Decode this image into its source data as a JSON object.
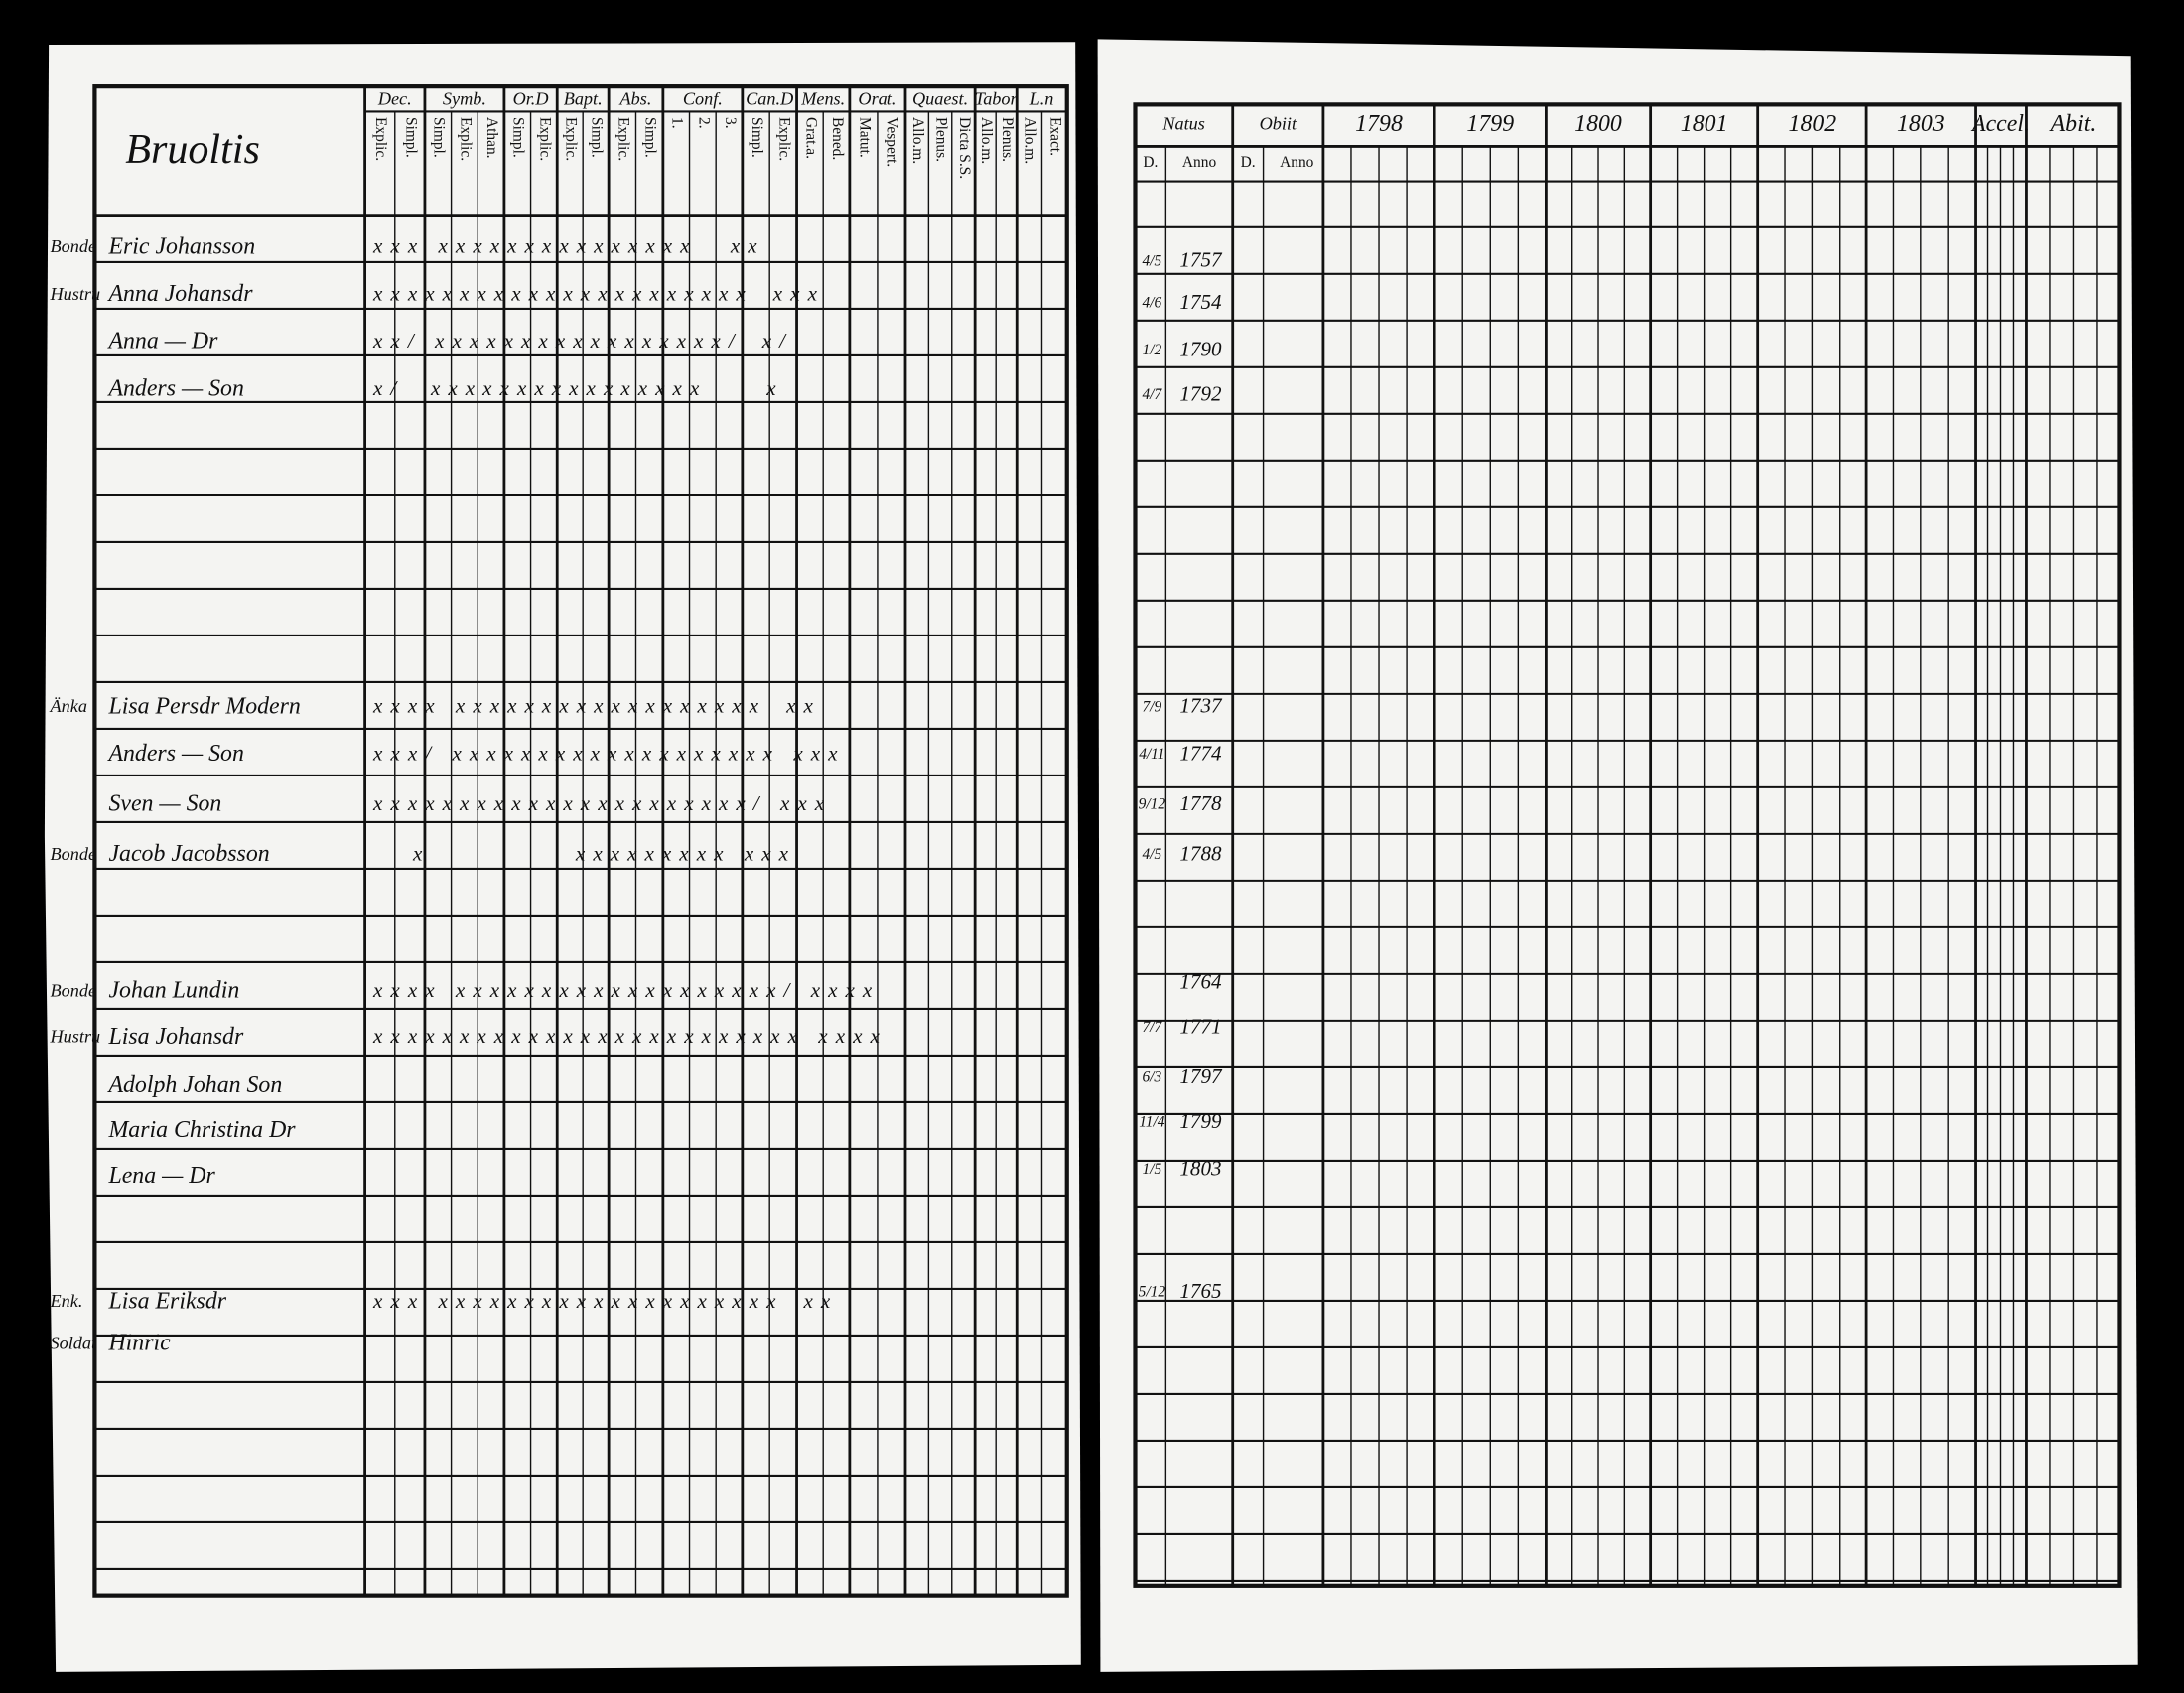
{
  "left_page": {
    "title": "Bruoltis",
    "columns": [
      {
        "group": "Dec.",
        "sub": [
          "Explic.",
          "Simpl."
        ]
      },
      {
        "group": "Symb.",
        "sub": [
          "Simpl.",
          "Explic.",
          "Athan."
        ]
      },
      {
        "group": "Or.D",
        "sub": [
          "Simpl.",
          "Explic."
        ]
      },
      {
        "group": "Bapt.",
        "sub": [
          "Explic.",
          "Simpl."
        ]
      },
      {
        "group": "Abs.",
        "sub": [
          "Explic.",
          "Simpl."
        ]
      },
      {
        "group": "Conf.",
        "sub": [
          "1.",
          "2.",
          "3."
        ]
      },
      {
        "group": "Can.D",
        "sub": [
          "Simpl.",
          "Explic."
        ]
      },
      {
        "group": "Mens.",
        "sub": [
          "Grat.a.",
          "Bened."
        ]
      },
      {
        "group": "Orat.",
        "sub": [
          "Matut.",
          "Vespert."
        ]
      },
      {
        "group": "Quaest.",
        "sub": [
          "Allo.m.",
          "Plenus.",
          "Dicta S.S."
        ]
      },
      {
        "group": "Tabor",
        "sub": [
          "Allo.m.",
          "Plenus."
        ]
      },
      {
        "group": "L.n",
        "sub": [
          "Allo.m.",
          "Exact."
        ]
      }
    ],
    "rows": [
      {
        "side": "Bonde",
        "name": "Eric Johansson",
        "marks": "x x x   x x x x x x x x x x x x x x x      x x"
      },
      {
        "side": "Hustru",
        "name": "Anna Johansdr",
        "marks": "x x x x x x x x x x x x x x x x x x x x x x    x x x"
      },
      {
        "name": "Anna — Dr",
        "marks": "x x /   x x x x x x x x x x x x x x x x x /    x /"
      },
      {
        "name": "Anders — Son",
        "marks": "x /     x x x x x x x x x x x x x x x x          x"
      },
      {
        "side": "Änka",
        "name": "Lisa Persdr Modern",
        "marks": "x x x x   x x x x x x x x x x x x x x x x x x    x x"
      },
      {
        "name": "Anders — Son",
        "marks": "x x x /   x x x x x x x x x x x x x x x x x x x   x x x"
      },
      {
        "name": "Sven — Son",
        "marks": "x x x x x x x x x x x x x x x x x x x x x x /   x x x"
      },
      {
        "side": "Bonde",
        "name": "Jacob Jacobsson",
        "marks": "      x                       x x x x x x x x x   x x x"
      },
      {
        "side": "Bonde",
        "name": "Johan Lundin",
        "marks": "x x x x   x x x x x x x x x x x x x x x x x x x /   x x x x"
      },
      {
        "side": "Hustru",
        "name": "Lisa Johansdr",
        "marks": "x x x x x x x x x x x x x x x x x x x x x x x x x   x x x x"
      },
      {
        "name": "Adolph Johan Son"
      },
      {
        "name": "Maria Christina Dr"
      },
      {
        "name": "Lena — Dr"
      },
      {
        "side": "Enk.",
        "name": "Lisa Eriksdr",
        "marks": "x x x   x x x x x x x x x x x x x x x x x x x x    x x"
      },
      {
        "side": "Soldat",
        "name": "Hinric"
      }
    ]
  },
  "right_page": {
    "columns": [
      {
        "label": "Natus",
        "sub": [
          "D.",
          "Anno"
        ]
      },
      {
        "label": "Obiit",
        "sub": [
          "D.",
          "Anno"
        ]
      },
      {
        "label": "1798"
      },
      {
        "label": "1799"
      },
      {
        "label": "1800"
      },
      {
        "label": "1801"
      },
      {
        "label": "1802"
      },
      {
        "label": "1803"
      },
      {
        "label": "Accel."
      },
      {
        "label": "Abit."
      }
    ],
    "rows": [
      {
        "day": "4/5",
        "year": "1757"
      },
      {
        "day": "4/6",
        "year": "1754"
      },
      {
        "day": "1/2",
        "year": "1790"
      },
      {
        "day": "4/7",
        "year": "1792"
      },
      {
        "day": "7/9",
        "year": "1737"
      },
      {
        "day": "4/11",
        "year": "1774"
      },
      {
        "day": "9/12",
        "year": "1778"
      },
      {
        "day": "4/5",
        "year": "1788"
      },
      {
        "year": "1764"
      },
      {
        "day": "7/7",
        "year": "1771"
      },
      {
        "day": "6/3",
        "year": "1797"
      },
      {
        "day": "11/4",
        "year": "1799"
      },
      {
        "day": "1/5",
        "year": "1803"
      },
      {
        "day": "5/12",
        "year": "1765"
      }
    ]
  }
}
